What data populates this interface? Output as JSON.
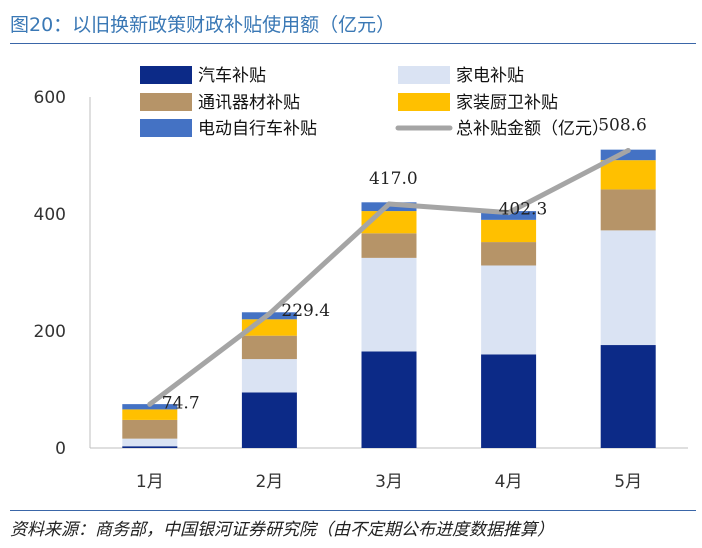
{
  "title": "图20：以旧换新政策财政补贴使用额（亿元）",
  "source": "资料来源：商务部，中国银河证券研究院（由不定期公布进度数据推算）",
  "chart_data": {
    "type": "bar",
    "stacked": true,
    "categories": [
      "1月",
      "2月",
      "3月",
      "4月",
      "5月"
    ],
    "ylim": [
      0,
      600
    ],
    "yticks": [
      0,
      200,
      400,
      600
    ],
    "grid": false,
    "legend_position": "top",
    "series": [
      {
        "name": "汽车补贴",
        "color": "#0c2a87",
        "values": [
          3,
          95,
          165,
          160,
          176
        ]
      },
      {
        "name": "家电补贴",
        "color": "#dae3f3",
        "values": [
          13,
          57,
          160,
          152,
          196
        ]
      },
      {
        "name": "通讯器材补贴",
        "color": "#b69468",
        "values": [
          32,
          40,
          42,
          40,
          70
        ]
      },
      {
        "name": "家装厨卫补贴",
        "color": "#ffc000",
        "values": [
          18,
          28,
          38,
          38,
          50
        ]
      },
      {
        "name": "电动自行车补贴",
        "color": "#4472c4",
        "values": [
          9,
          12,
          15,
          15,
          18
        ]
      }
    ],
    "line": {
      "name": "总补贴金额（亿元）",
      "color": "#a5a5a5",
      "values": [
        74.7,
        229.4,
        417.0,
        402.3,
        508.6
      ],
      "labels": [
        "74.7",
        "229.4",
        "417.0",
        "402.3",
        "508.6"
      ]
    }
  }
}
